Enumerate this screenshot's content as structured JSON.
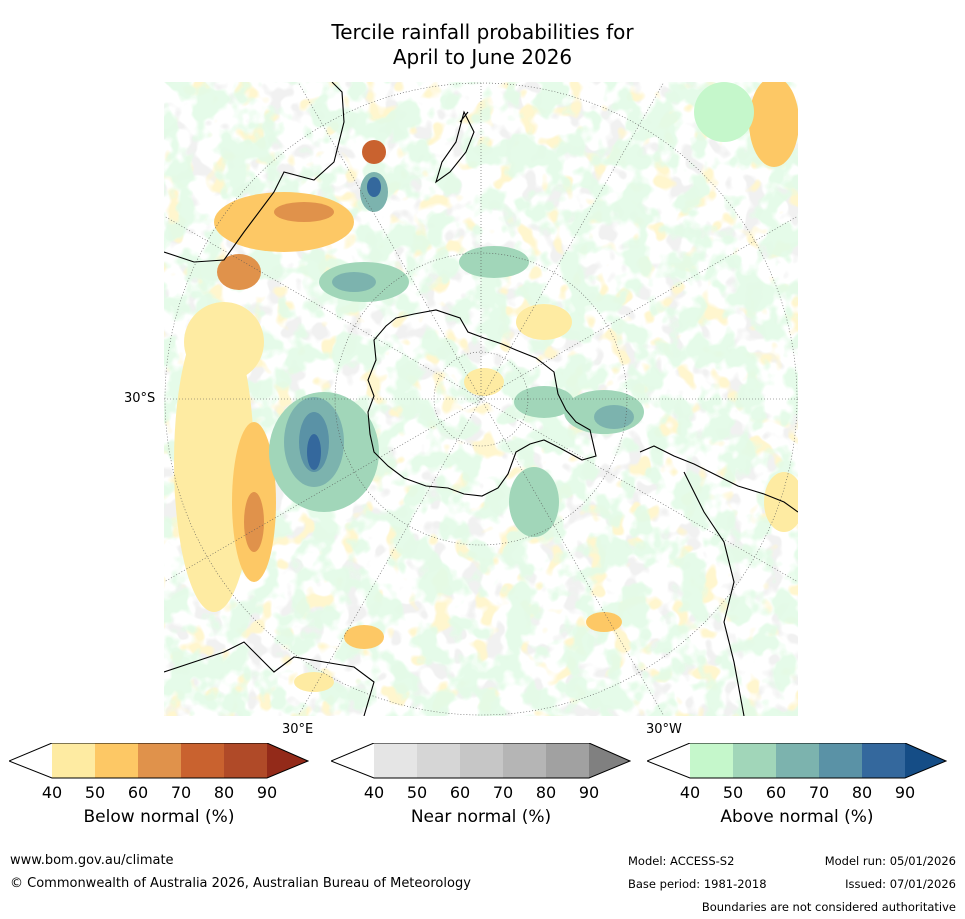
{
  "title": {
    "line1": "Tercile rainfall probabilities for",
    "line2": "April to June 2026"
  },
  "map": {
    "projection": "south-polar stereographic",
    "labels": {
      "lat_30s": "30°S",
      "lon_30e": "30°E",
      "lon_30w": "30°W"
    }
  },
  "colorbars": [
    {
      "label": "Below normal (%)",
      "ticks": [
        "40",
        "50",
        "60",
        "70",
        "80",
        "90"
      ],
      "colors": [
        "#ffffff",
        "#feeba2",
        "#fdc865",
        "#e0924b",
        "#c9622f",
        "#b04a28",
        "#932a19"
      ]
    },
    {
      "label": "Near normal (%)",
      "ticks": [
        "40",
        "50",
        "60",
        "70",
        "80",
        "90"
      ],
      "colors": [
        "#ffffff",
        "#e5e5e5",
        "#d6d6d6",
        "#c6c6c6",
        "#b5b5b5",
        "#a1a1a1",
        "#808080"
      ]
    },
    {
      "label": "Above normal (%)",
      "ticks": [
        "40",
        "50",
        "60",
        "70",
        "80",
        "90"
      ],
      "colors": [
        "#ffffff",
        "#c5f7cb",
        "#a1d6b9",
        "#7cb3ae",
        "#5a92a6",
        "#34689d",
        "#154d86"
      ]
    }
  ],
  "footer": {
    "url": "www.bom.gov.au/climate",
    "copyright": "© Commonwealth of Australia 2026, Australian Bureau of Meteorology",
    "model": "Model: ACCESS-S2",
    "model_run": "Model run: 05/01/2026",
    "base_period": "Base period: 1981-2018",
    "issued": "Issued: 07/01/2026",
    "disclaimer": "Boundaries are not considered authoritative"
  }
}
